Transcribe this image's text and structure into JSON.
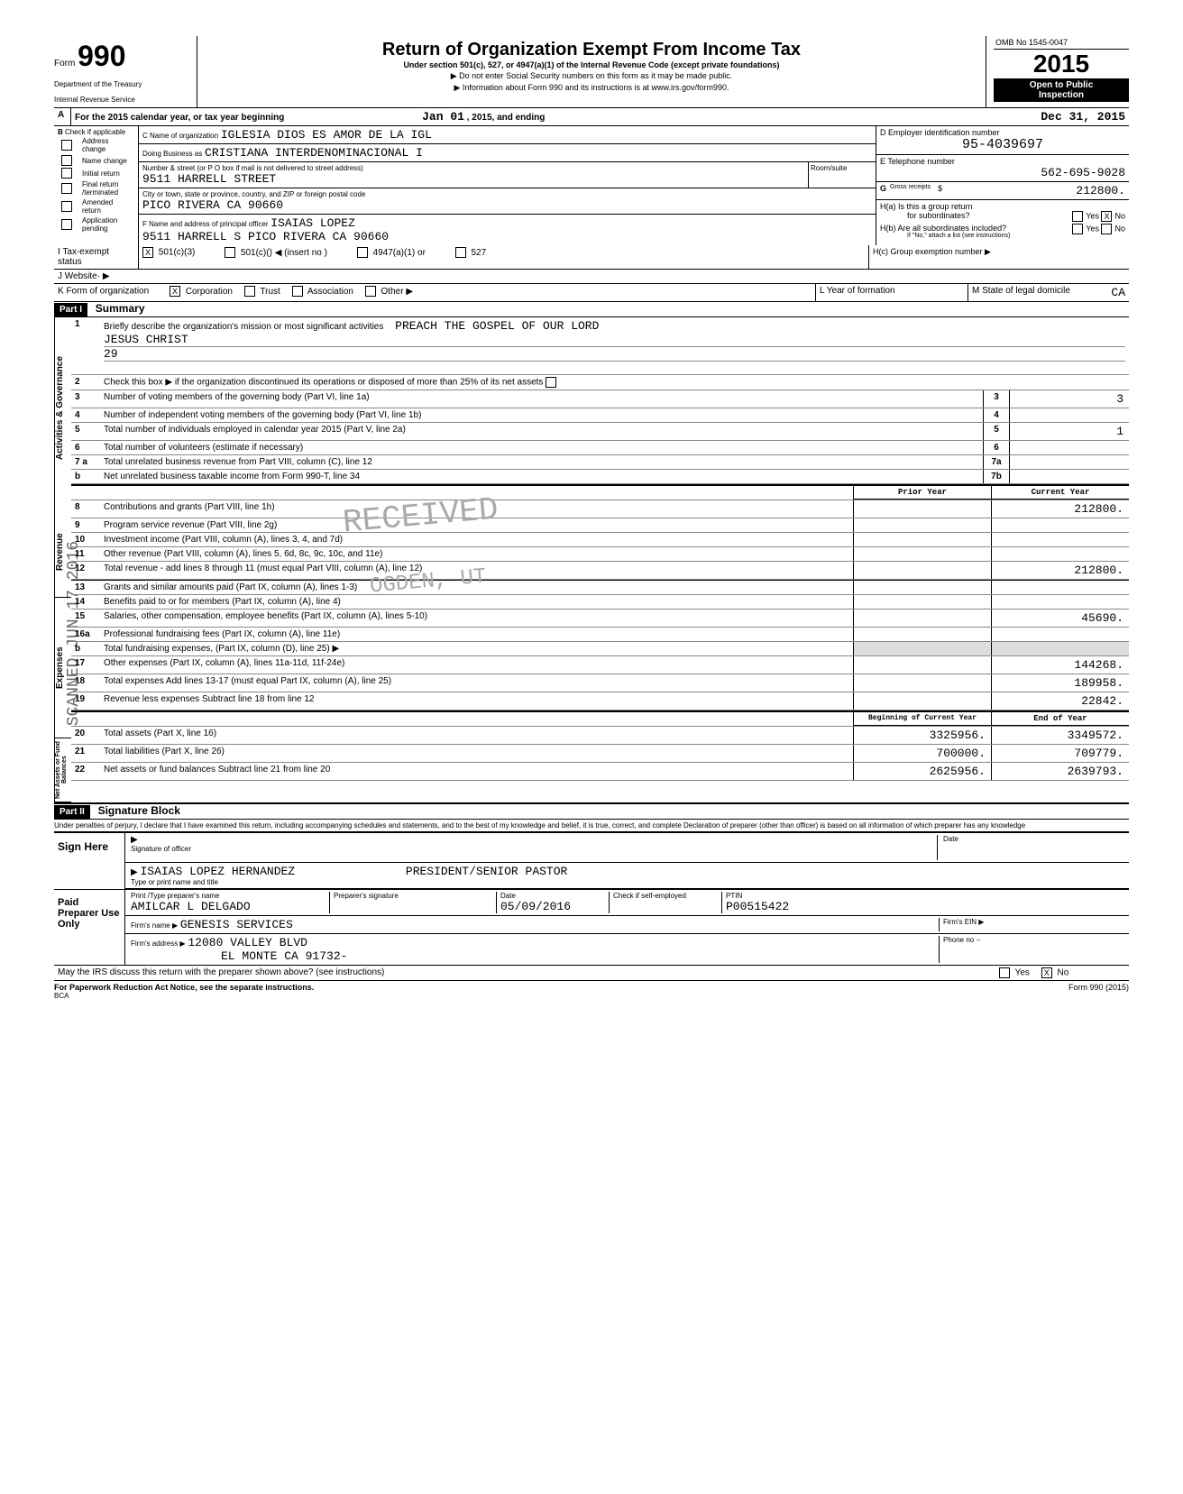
{
  "header": {
    "form_label": "Form",
    "form_number": "990",
    "dept1": "Department of the Treasury",
    "dept2": "Internal Revenue Service",
    "title": "Return of Organization Exempt From Income Tax",
    "subtitle": "Under section 501(c), 527, or 4947(a)(1) of the Internal Revenue Code (except private foundations)",
    "line1": "▶  Do not enter Social Security numbers on this form as it may be made public.",
    "line2": "▶  Information about Form 990 and its instructions is at www.irs.gov/form990.",
    "omb": "OMB No 1545-0047",
    "year": "2015",
    "open1": "Open to Public",
    "open2": "Inspection"
  },
  "line_a": {
    "label": "A",
    "text1": "For the 2015 calendar year, or tax year beginning",
    "begin": "Jan  01",
    "text2": ", 2015, and ending",
    "end": "Dec  31, 2015"
  },
  "section_b": {
    "label": "B",
    "check_if": "Check if applicable",
    "items": [
      "Address change",
      "Name change",
      "Initial return",
      "Final return /terminated",
      "Amended return",
      "Application pending"
    ]
  },
  "section_c": {
    "c_label": "C  Name of organization",
    "org_name": "IGLESIA DIOS ES AMOR DE LA IGL",
    "dba_label": "Doing Business as",
    "dba": "CRISTIANA INTERDENOMINACIONAL  I",
    "street_label": "Number & street (or P O  box if mail is not delivered to street address)",
    "room_label": "Room/suite",
    "street": "9511 HARRELL STREET",
    "city_label": "City or town, state or province, country, and ZIP or foreign postal code",
    "city": "PICO RIVERA CA 90660",
    "f_label": "F    Name and address of principal officer",
    "officer": "ISAIAS LOPEZ",
    "officer_addr": "9511 HARRELL S PICO RIVERA   CA 90660"
  },
  "section_d": {
    "d_label": "D  Employer identification number",
    "ein": "95-4039697",
    "e_label": "E  Telephone number",
    "phone": "562-695-9028",
    "g_label": "G",
    "gross_label": "Gross receipts",
    "gross": "212800.",
    "ha_label": "H(a)   Is this a group return",
    "ha_sub": "for subordinates?",
    "yes": "Yes",
    "no": "No",
    "hb_label": "H(b)   Are all subordinates included?",
    "hb_sub": "If \"No,\" attach a list (see instructions)",
    "hc_label": "H(c)   Group exemption number  ▶"
  },
  "tax_status": {
    "i_label": "I    Tax-exempt status",
    "opt1": "501(c)(3)",
    "opt2": "501(c)(",
    "opt2_suf": ")  ◀ (insert no )",
    "opt3": "4947(a)(1) or",
    "opt4": "527"
  },
  "j": {
    "label": "J   Website· ▶"
  },
  "k": {
    "label": "K  Form of organization",
    "corp": "Corporation",
    "trust": "Trust",
    "assoc": "Association",
    "other": "Other ▶",
    "l_label": "L  Year of formation",
    "m_label": "M  State of legal domicile",
    "m_val": "CA"
  },
  "part1": {
    "hdr": "Part I",
    "title": "Summary",
    "line1_label": "1",
    "line1_text": "Briefly describe the organization's mission or most significant activities",
    "line1_val": "PREACH THE GOSPEL OF OUR LORD",
    "line1_val2": "JESUS CHRIST",
    "line1_val3": "29",
    "governance_label": "Activities & Governance",
    "lines_gov": [
      {
        "n": "2",
        "d": "Check this box ▶        if the organization discontinued its operations or disposed of more than 25% of its net assets"
      },
      {
        "n": "3",
        "d": "Number of voting members of the governing body (Part VI, line 1a)",
        "box": "3",
        "v": "3"
      },
      {
        "n": "4",
        "d": "Number of independent voting members of the governing body (Part VI, line 1b)",
        "box": "4",
        "v": ""
      },
      {
        "n": "5",
        "d": "Total number of individuals employed in calendar year 2015 (Part V, line 2a)",
        "box": "5",
        "v": "1"
      },
      {
        "n": "6",
        "d": "Total number of volunteers (estimate if necessary)",
        "box": "6",
        "v": ""
      },
      {
        "n": "7 a",
        "d": "Total unrelated business revenue from Part VIII, column (C), line 12",
        "box": "7a",
        "v": ""
      },
      {
        "n": "b",
        "d": "Net unrelated business taxable income from Form 990-T, line 34",
        "box": "7b",
        "v": ""
      }
    ],
    "revenue_label": "Revenue",
    "col_prior": "Prior Year",
    "col_current": "Current Year",
    "lines_rev": [
      {
        "n": "8",
        "d": "Contributions and grants (Part VIII, line 1h)",
        "p": "",
        "c": "212800."
      },
      {
        "n": "9",
        "d": "Program service revenue (Part VIII, line 2g)",
        "p": "",
        "c": ""
      },
      {
        "n": "10",
        "d": "Investment income (Part VIII, column (A), lines 3, 4, and 7d)",
        "p": "",
        "c": ""
      },
      {
        "n": "11",
        "d": "Other revenue (Part VIII, column (A), lines 5, 6d, 8c, 9c, 10c, and 11e)",
        "p": "",
        "c": ""
      },
      {
        "n": "12",
        "d": "Total revenue - add lines 8 through 11 (must equal Part VIII, column (A), line 12)",
        "p": "",
        "c": "212800."
      }
    ],
    "expenses_label": "Expenses",
    "lines_exp": [
      {
        "n": "13",
        "d": "Grants and similar amounts paid (Part IX, column (A), lines 1-3)",
        "p": "",
        "c": ""
      },
      {
        "n": "14",
        "d": "Benefits paid to or for members (Part IX, column (A), line 4)",
        "p": "",
        "c": ""
      },
      {
        "n": "15",
        "d": "Salaries, other compensation, employee benefits (Part IX, column (A), lines 5-10)",
        "p": "",
        "c": "45690."
      },
      {
        "n": "16a",
        "d": "Professional fundraising fees (Part IX, column (A), line 11e)",
        "p": "",
        "c": ""
      },
      {
        "n": "b",
        "d": "Total fundraising expenses, (Part IX, column (D), line 25) ▶",
        "p": "shade",
        "c": "shade"
      },
      {
        "n": "17",
        "d": "Other expenses (Part IX, column (A), lines 11a-11d, 11f-24e)",
        "p": "",
        "c": "144268."
      },
      {
        "n": "18",
        "d": "Total expenses  Add lines 13-17 (must equal Part IX, column (A), line 25)",
        "p": "",
        "c": "189958."
      },
      {
        "n": "19",
        "d": "Revenue less expenses   Subtract line 18 from line 12",
        "p": "",
        "c": "22842."
      }
    ],
    "net_label": "Net Assets or Fund Balances",
    "col_boy": "Beginning of Current Year",
    "col_eoy": "End of Year",
    "lines_net": [
      {
        "n": "20",
        "d": "Total assets (Part X, line 16)",
        "p": "3325956.",
        "c": "3349572."
      },
      {
        "n": "21",
        "d": "Total liabilities (Part X, line 26)",
        "p": "700000.",
        "c": "709779."
      },
      {
        "n": "22",
        "d": "Net assets or fund balances  Subtract line 21 from line 20",
        "p": "2625956.",
        "c": "2639793."
      }
    ]
  },
  "part2": {
    "hdr": "Part II",
    "title": "Signature Block",
    "perjury": "Under penalties of perjury, I declare that I have examined this return, including accompanying schedules and statements, and to the best of my knowledge and belief, it is true, correct, and complete  Declaration of preparer (other than officer) is based on all information of which preparer has any knowledge",
    "sign_here": "Sign Here",
    "sig_officer": "Signature of officer",
    "date": "Date",
    "officer_name": "ISAIAS LOPEZ HERNANDEZ",
    "officer_title": "PRESIDENT/SENIOR PASTOR",
    "type_name": "Type or print name and title",
    "paid": "Paid Preparer Use Only",
    "prep_name_label": "Print /Type preparer's name",
    "prep_name": "AMILCAR L DELGADO",
    "prep_sig_label": "Preparer's signature",
    "prep_date_label": "Date",
    "prep_date": "05/09/2016",
    "check_label": "Check        if self-employed",
    "ptin_label": "PTIN",
    "ptin": "P00515422",
    "firm_name_label": "Firm's name      ▶",
    "firm_name": "GENESIS SERVICES",
    "firm_ein_label": "Firm's EIN  ▶",
    "firm_addr_label": "Firm's address   ▶",
    "firm_addr1": "12080 VALLEY BLVD",
    "firm_addr2": "EL MONTE CA 91732-",
    "phone_label": "Phone no   --",
    "discuss": "May the IRS discuss this return with the preparer shown above? (see instructions)",
    "paperwork": "For Paperwork Reduction Act Notice, see the separate instructions.",
    "bca": "BCA",
    "form_foot": "Form  990  (2015)"
  },
  "watermarks": {
    "received": "RECEIVED",
    "ogden": "OGDEN, UT",
    "scanned": "SCANNED JUN 17 2016"
  }
}
